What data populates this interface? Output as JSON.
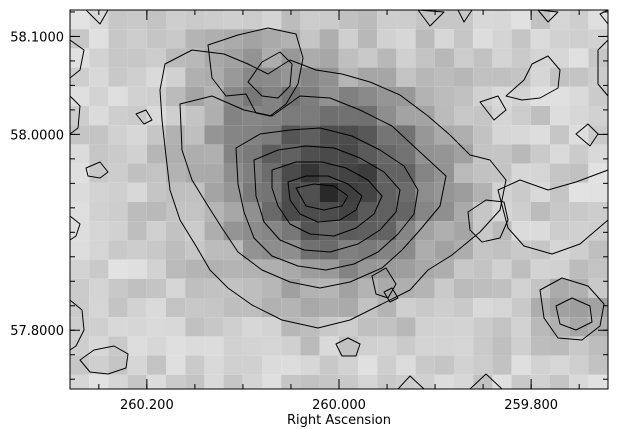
{
  "chart_data": {
    "type": "heatmap",
    "title": "",
    "xlabel": "Right Ascension",
    "ylabel": "",
    "xlim": [
      260.28,
      259.72
    ],
    "ylim": [
      57.74,
      58.127
    ],
    "x_ticks": [
      260.2,
      260.0,
      259.8
    ],
    "x_tick_labels": [
      "260.200",
      "260.000",
      "259.800"
    ],
    "y_ticks": [
      57.8,
      58.0,
      58.1
    ],
    "y_tick_labels": [
      "57.8000",
      "58.0000",
      "58.1000"
    ],
    "grid": false,
    "colormap": "grayscale (darker = higher intensity)",
    "peak": {
      "ra": 260.004,
      "dec": 57.95
    },
    "contour_levels": 6,
    "background_color": "#d4d4d4"
  }
}
